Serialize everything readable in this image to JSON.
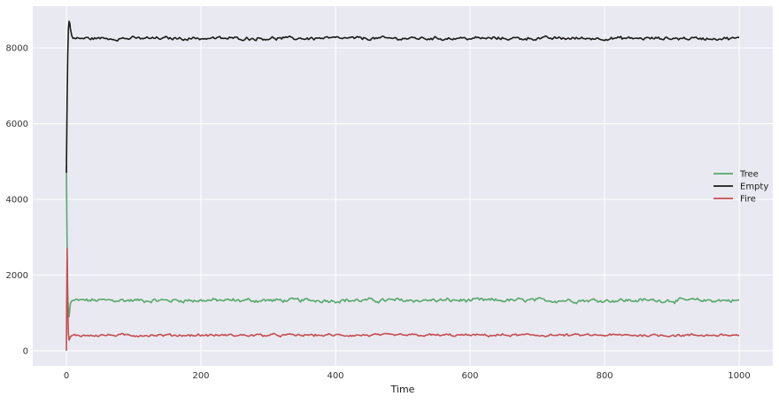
{
  "chart_data": {
    "type": "line",
    "title": "",
    "xlabel": "Time",
    "ylabel": "",
    "xlim": [
      -50,
      1050
    ],
    "ylim": [
      -400,
      9100
    ],
    "x_ticks": [
      0,
      200,
      400,
      600,
      800,
      1000
    ],
    "y_ticks": [
      0,
      2000,
      4000,
      6000,
      8000
    ],
    "grid": true,
    "legend_position": "center-right",
    "background": "#e9e9f1",
    "series": [
      {
        "name": "Tree",
        "color": "#55a868",
        "initial": [
          [
            0,
            4900
          ],
          [
            1,
            2800
          ],
          [
            2,
            1500
          ],
          [
            3,
            1000
          ],
          [
            4,
            900
          ],
          [
            5,
            1100
          ],
          [
            6,
            1250
          ],
          [
            8,
            1320
          ],
          [
            10,
            1330
          ]
        ],
        "steady_x": [
          10,
          1000
        ],
        "steady_mean": 1330,
        "steady_amplitude": 55
      },
      {
        "name": "Empty",
        "color": "#1a1a1a",
        "initial": [
          [
            0,
            4700
          ],
          [
            1,
            6500
          ],
          [
            2,
            7800
          ],
          [
            3,
            8500
          ],
          [
            4,
            8700
          ],
          [
            5,
            8650
          ],
          [
            6,
            8500
          ],
          [
            8,
            8320
          ],
          [
            10,
            8250
          ]
        ],
        "steady_x": [
          10,
          1000
        ],
        "steady_mean": 8250,
        "steady_amplitude": 45
      },
      {
        "name": "Fire",
        "color": "#c44e52",
        "initial": [
          [
            0,
            0
          ],
          [
            1,
            2700
          ],
          [
            2,
            1200
          ],
          [
            3,
            450
          ],
          [
            4,
            280
          ],
          [
            5,
            320
          ],
          [
            6,
            370
          ],
          [
            8,
            400
          ],
          [
            10,
            410
          ]
        ],
        "steady_x": [
          10,
          1000
        ],
        "steady_mean": 410,
        "steady_amplitude": 35
      }
    ]
  }
}
